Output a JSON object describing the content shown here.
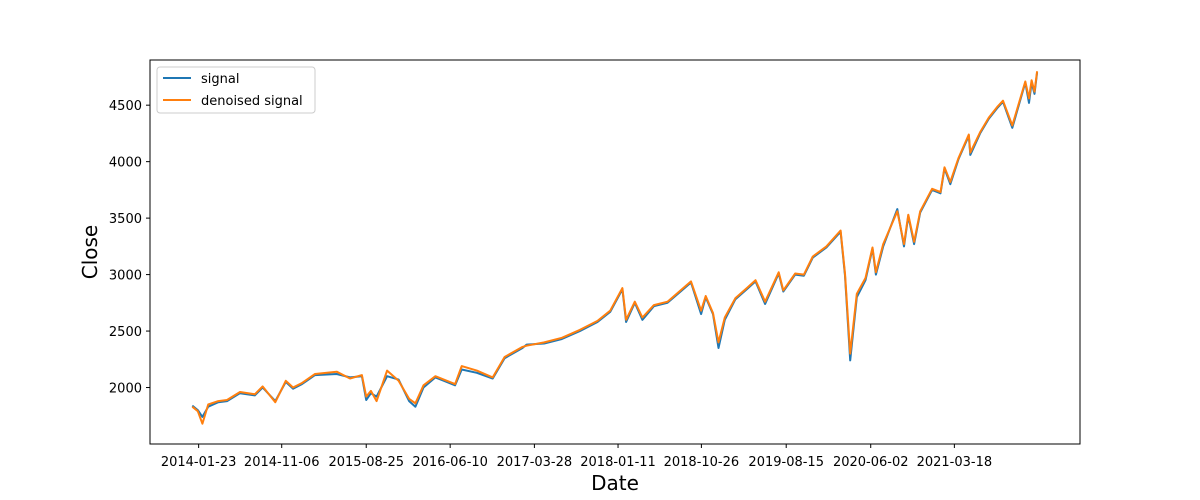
{
  "chart_data": {
    "type": "line",
    "xlabel": "Date",
    "ylabel": "Close",
    "x_start": "2014-01-01",
    "x_end": "2021-12-31",
    "ylim": [
      1500,
      4900
    ],
    "grid": false,
    "legend_position": "top-left",
    "x_ticks": [
      "2014-01-23",
      "2014-11-06",
      "2015-08-25",
      "2016-06-10",
      "2017-03-28",
      "2018-01-11",
      "2018-10-26",
      "2019-08-15",
      "2020-06-02",
      "2021-03-18"
    ],
    "y_ticks": [
      2000,
      2500,
      3000,
      3500,
      4000,
      4500
    ],
    "series": [
      {
        "name": "signal",
        "color": "#1f77b4",
        "x": [
          "2014-01-01",
          "2014-01-20",
          "2014-02-05",
          "2014-02-25",
          "2014-04-01",
          "2014-05-01",
          "2014-06-15",
          "2014-08-05",
          "2014-09-01",
          "2014-10-15",
          "2014-11-20",
          "2014-12-15",
          "2015-01-15",
          "2015-03-01",
          "2015-05-15",
          "2015-06-30",
          "2015-08-10",
          "2015-08-25",
          "2015-09-10",
          "2015-09-30",
          "2015-11-05",
          "2015-12-15",
          "2016-01-20",
          "2016-02-11",
          "2016-03-10",
          "2016-04-20",
          "2016-06-27",
          "2016-07-20",
          "2016-09-10",
          "2016-11-04",
          "2016-12-15",
          "2017-02-15",
          "2017-03-01",
          "2017-05-01",
          "2017-07-01",
          "2017-09-01",
          "2017-11-01",
          "2017-12-15",
          "2018-01-26",
          "2018-02-08",
          "2018-03-10",
          "2018-04-05",
          "2018-05-15",
          "2018-07-01",
          "2018-08-15",
          "2018-09-20",
          "2018-10-25",
          "2018-11-10",
          "2018-12-05",
          "2018-12-24",
          "2019-01-15",
          "2019-02-20",
          "2019-04-01",
          "2019-05-01",
          "2019-06-03",
          "2019-07-20",
          "2019-08-05",
          "2019-09-15",
          "2019-10-15",
          "2019-11-15",
          "2020-01-01",
          "2020-02-19",
          "2020-03-05",
          "2020-03-23",
          "2020-04-15",
          "2020-05-15",
          "2020-06-08",
          "2020-06-20",
          "2020-07-15",
          "2020-09-02",
          "2020-09-25",
          "2020-10-10",
          "2020-10-30",
          "2020-11-20",
          "2020-12-31",
          "2021-01-29",
          "2021-02-12",
          "2021-03-04",
          "2021-04-01",
          "2021-05-07",
          "2021-05-12",
          "2021-06-15",
          "2021-07-15",
          "2021-08-15",
          "2021-09-02",
          "2021-10-04",
          "2021-11-18",
          "2021-12-01",
          "2021-12-10",
          "2021-12-20",
          "2021-12-29"
        ],
        "values": [
          1840,
          1800,
          1740,
          1830,
          1870,
          1880,
          1950,
          1930,
          2000,
          1880,
          2050,
          1990,
          2030,
          2110,
          2120,
          2090,
          2100,
          1890,
          1950,
          1920,
          2100,
          2070,
          1880,
          1830,
          2000,
          2090,
          2020,
          2160,
          2130,
          2080,
          2260,
          2350,
          2380,
          2390,
          2430,
          2500,
          2580,
          2670,
          2870,
          2580,
          2750,
          2600,
          2720,
          2750,
          2850,
          2930,
          2650,
          2800,
          2650,
          2350,
          2600,
          2780,
          2870,
          2940,
          2740,
          3010,
          2850,
          3000,
          2990,
          3150,
          3240,
          3380,
          2990,
          2240,
          2800,
          2950,
          3230,
          3000,
          3250,
          3580,
          3250,
          3520,
          3270,
          3550,
          3750,
          3720,
          3940,
          3800,
          4020,
          4230,
          4060,
          4250,
          4380,
          4480,
          4530,
          4300,
          4700,
          4520,
          4700,
          4600,
          4790
        ]
      },
      {
        "name": "denoised signal",
        "color": "#ff7f0e",
        "x": [
          "2014-01-01",
          "2014-01-20",
          "2014-02-05",
          "2014-02-25",
          "2014-04-01",
          "2014-05-01",
          "2014-06-15",
          "2014-08-05",
          "2014-09-01",
          "2014-10-15",
          "2014-11-20",
          "2014-12-15",
          "2015-01-15",
          "2015-03-01",
          "2015-05-15",
          "2015-06-30",
          "2015-08-10",
          "2015-08-25",
          "2015-09-10",
          "2015-09-30",
          "2015-11-05",
          "2015-12-15",
          "2016-01-20",
          "2016-02-11",
          "2016-03-10",
          "2016-04-20",
          "2016-06-27",
          "2016-07-20",
          "2016-09-10",
          "2016-11-04",
          "2016-12-15",
          "2017-02-15",
          "2017-03-01",
          "2017-05-01",
          "2017-07-01",
          "2017-09-01",
          "2017-11-01",
          "2017-12-15",
          "2018-01-26",
          "2018-02-08",
          "2018-03-10",
          "2018-04-05",
          "2018-05-15",
          "2018-07-01",
          "2018-08-15",
          "2018-09-20",
          "2018-10-25",
          "2018-11-10",
          "2018-12-05",
          "2018-12-24",
          "2019-01-15",
          "2019-02-20",
          "2019-04-01",
          "2019-05-01",
          "2019-06-03",
          "2019-07-20",
          "2019-08-05",
          "2019-09-15",
          "2019-10-15",
          "2019-11-15",
          "2020-01-01",
          "2020-02-19",
          "2020-03-05",
          "2020-03-23",
          "2020-04-15",
          "2020-05-15",
          "2020-06-08",
          "2020-06-20",
          "2020-07-15",
          "2020-09-02",
          "2020-09-25",
          "2020-10-10",
          "2020-10-30",
          "2020-11-20",
          "2020-12-31",
          "2021-01-29",
          "2021-02-12",
          "2021-03-04",
          "2021-04-01",
          "2021-05-07",
          "2021-05-12",
          "2021-06-15",
          "2021-07-15",
          "2021-08-15",
          "2021-09-02",
          "2021-10-04",
          "2021-11-18",
          "2021-12-01",
          "2021-12-10",
          "2021-12-20",
          "2021-12-29"
        ],
        "values": [
          1830,
          1790,
          1680,
          1850,
          1880,
          1890,
          1960,
          1940,
          2010,
          1870,
          2060,
          2000,
          2040,
          2120,
          2140,
          2080,
          2110,
          1920,
          1970,
          1880,
          2150,
          2060,
          1900,
          1860,
          2020,
          2100,
          2030,
          2190,
          2150,
          2090,
          2270,
          2360,
          2370,
          2400,
          2440,
          2510,
          2590,
          2680,
          2880,
          2600,
          2760,
          2620,
          2730,
          2760,
          2860,
          2940,
          2680,
          2810,
          2660,
          2400,
          2620,
          2790,
          2880,
          2950,
          2760,
          3020,
          2860,
          3010,
          3000,
          3160,
          3250,
          3390,
          3010,
          2300,
          2830,
          2970,
          3240,
          3020,
          3270,
          3560,
          3270,
          3530,
          3290,
          3560,
          3760,
          3730,
          3950,
          3820,
          4030,
          4240,
          4080,
          4260,
          4390,
          4490,
          4540,
          4320,
          4710,
          4560,
          4720,
          4620,
          4800
        ]
      }
    ]
  }
}
